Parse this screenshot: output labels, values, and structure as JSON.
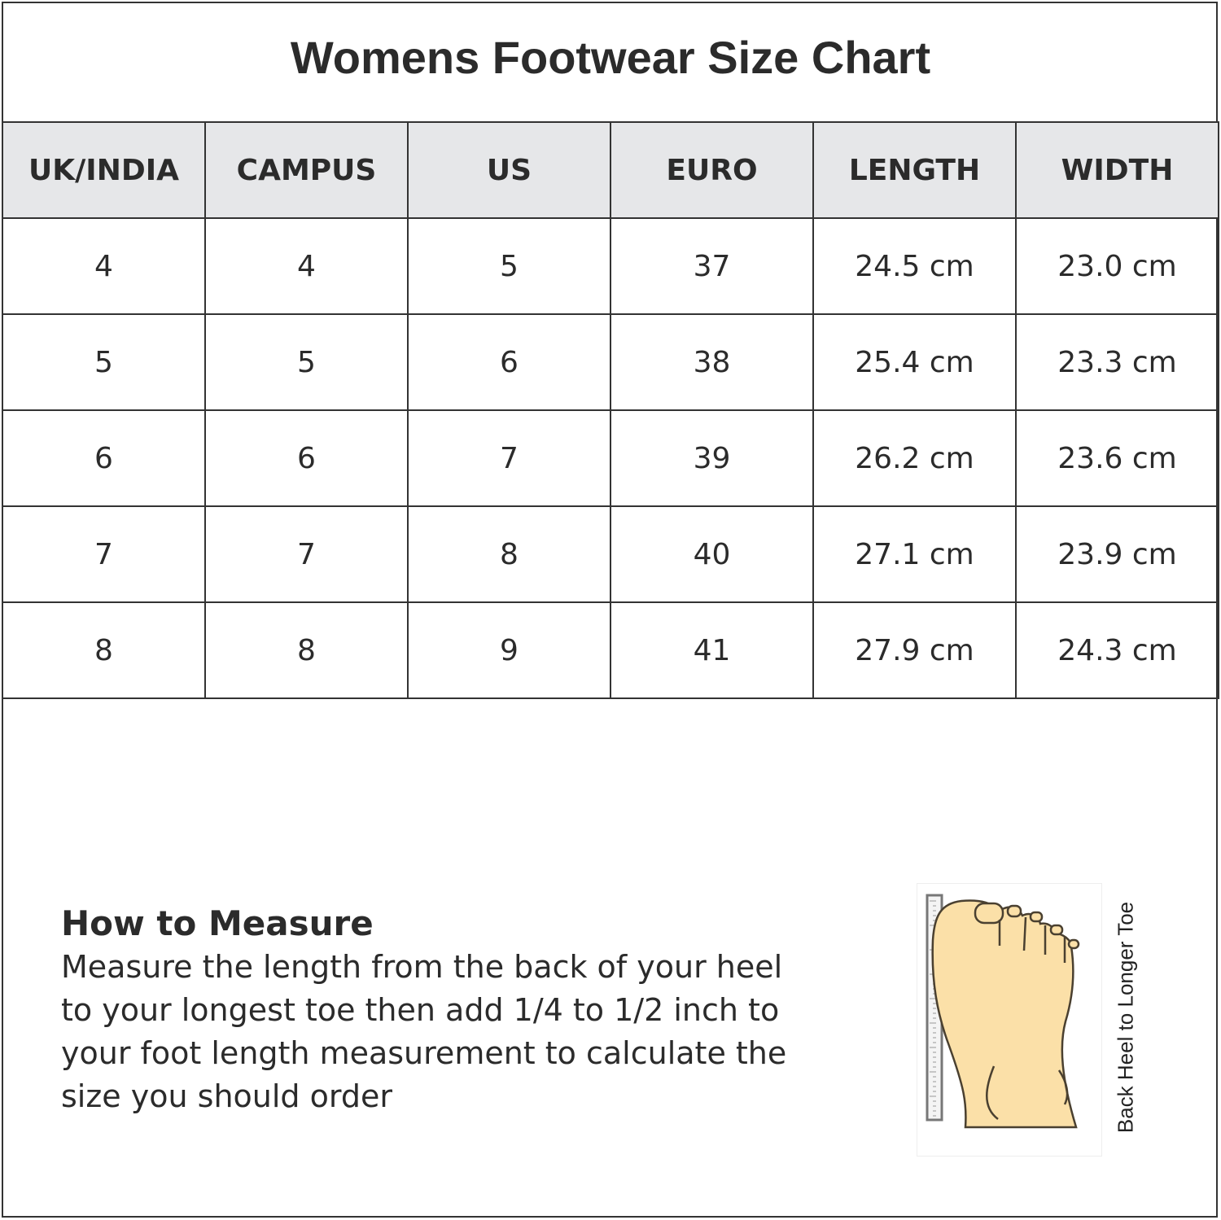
{
  "title": "Womens Footwear Size Chart",
  "table": {
    "headers": [
      "UK/INDIA",
      "CAMPUS",
      "US",
      "EURO",
      "LENGTH",
      "WIDTH"
    ],
    "rows": [
      [
        "4",
        "4",
        "5",
        "37",
        "24.5 cm",
        "23.0 cm"
      ],
      [
        "5",
        "5",
        "6",
        "38",
        "25.4 cm",
        "23.3 cm"
      ],
      [
        "6",
        "6",
        "7",
        "39",
        "26.2 cm",
        "23.6 cm"
      ],
      [
        "7",
        "7",
        "8",
        "40",
        "27.1 cm",
        "23.9 cm"
      ],
      [
        "8",
        "8",
        "9",
        "41",
        "27.9 cm",
        "24.3 cm"
      ]
    ]
  },
  "measure": {
    "heading": "How to Measure",
    "text": "Measure the length from the back of your heel to your longest toe then add 1/4 to 1/2 inch to your foot length measurement to calculate the size you should order"
  },
  "illustration": {
    "caption": "Back Heel to Longer Toe",
    "icon": "foot-with-ruler-icon",
    "skin_color": "#fbe0a8"
  },
  "colors": {
    "header_bg": "#e6e7e9",
    "border": "#333333"
  }
}
